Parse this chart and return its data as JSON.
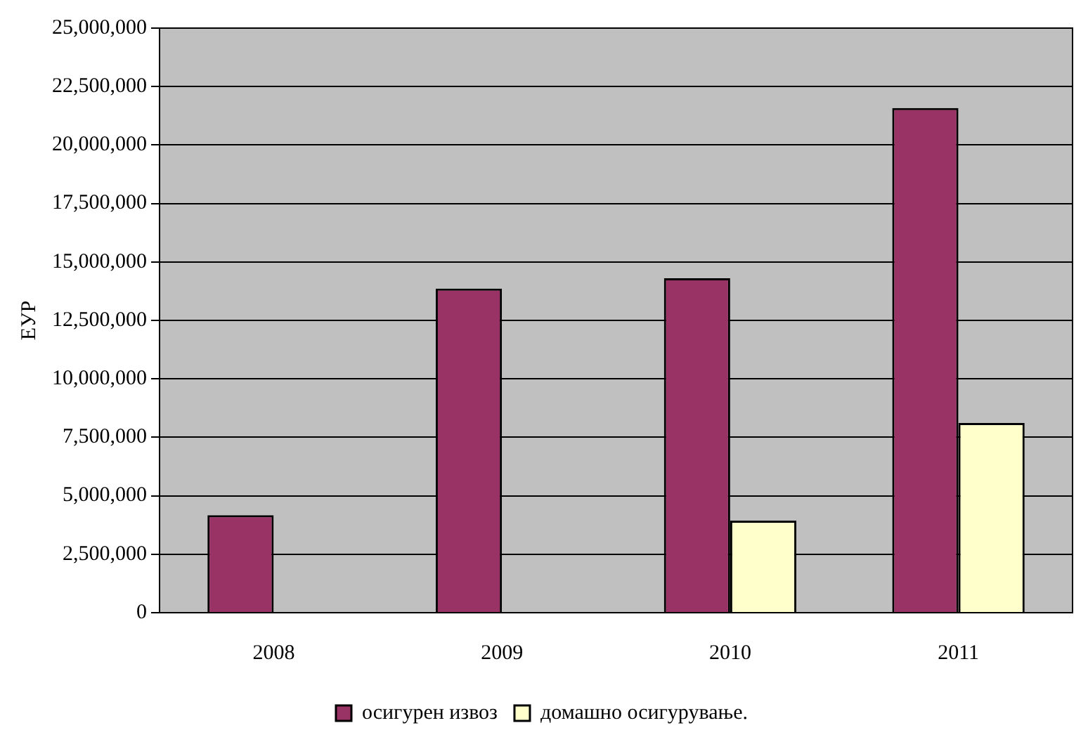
{
  "chart_data": {
    "type": "bar",
    "ylabel": "ЕУР",
    "categories": [
      "2008",
      "2009",
      "2010",
      "2011"
    ],
    "series": [
      {
        "name": "осигурен извоз",
        "color": "#993366",
        "values": [
          4170000,
          13860000,
          14300000,
          21580000
        ]
      },
      {
        "name": "домашно осигурување.",
        "color": "#ffffcc",
        "values": [
          null,
          null,
          3940000,
          8110000
        ]
      }
    ],
    "ylim": [
      0,
      25000000
    ],
    "yticks": [
      {
        "value": 0,
        "label": "0"
      },
      {
        "value": 2500000,
        "label": "2,500,000"
      },
      {
        "value": 5000000,
        "label": "5,000,000"
      },
      {
        "value": 7500000,
        "label": "7,500,000"
      },
      {
        "value": 10000000,
        "label": "10,000,000"
      },
      {
        "value": 12500000,
        "label": "12,500,000"
      },
      {
        "value": 15000000,
        "label": "15,000,000"
      },
      {
        "value": 17500000,
        "label": "17,500,000"
      },
      {
        "value": 20000000,
        "label": "20,000,000"
      },
      {
        "value": 22500000,
        "label": "22,500,000"
      },
      {
        "value": 25000000,
        "label": "25,000,000"
      }
    ],
    "grid": "y",
    "legend": "bottom"
  }
}
